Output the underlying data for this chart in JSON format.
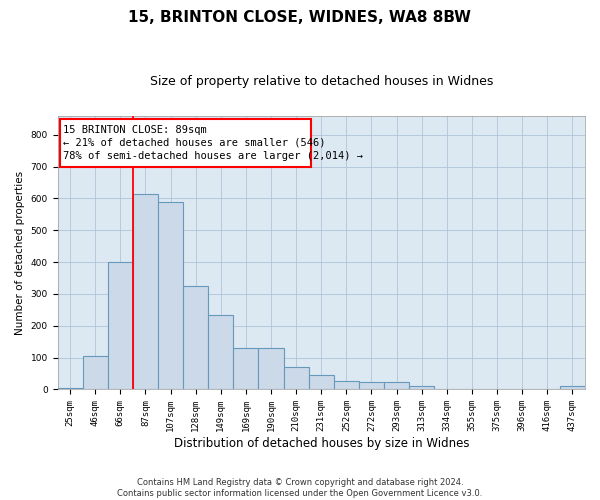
{
  "title1": "15, BRINTON CLOSE, WIDNES, WA8 8BW",
  "title2": "Size of property relative to detached houses in Widnes",
  "xlabel": "Distribution of detached houses by size in Widnes",
  "ylabel": "Number of detached properties",
  "footer1": "Contains HM Land Registry data © Crown copyright and database right 2024.",
  "footer2": "Contains public sector information licensed under the Open Government Licence v3.0.",
  "bar_labels": [
    "25sqm",
    "46sqm",
    "66sqm",
    "87sqm",
    "107sqm",
    "128sqm",
    "149sqm",
    "169sqm",
    "190sqm",
    "210sqm",
    "231sqm",
    "252sqm",
    "272sqm",
    "293sqm",
    "313sqm",
    "334sqm",
    "355sqm",
    "375sqm",
    "396sqm",
    "416sqm",
    "437sqm"
  ],
  "bar_values": [
    5,
    105,
    400,
    615,
    590,
    325,
    235,
    130,
    130,
    72,
    45,
    28,
    22,
    22,
    10,
    0,
    0,
    0,
    0,
    0,
    10
  ],
  "bar_color": "#ccd9e8",
  "bar_edgecolor": "#6699bb",
  "bar_linewidth": 0.8,
  "grid_color": "#b0c4d8",
  "bg_color": "#dce8f2",
  "ann_line1": "15 BRINTON CLOSE: 89sqm",
  "ann_line2": "← 21% of detached houses are smaller (546)",
  "ann_line3": "78% of semi-detached houses are larger (2,014) →",
  "red_line_x": 2.5,
  "ylim": [
    0,
    860
  ],
  "yticks": [
    0,
    100,
    200,
    300,
    400,
    500,
    600,
    700,
    800
  ],
  "title1_fontsize": 11,
  "title2_fontsize": 9,
  "xlabel_fontsize": 8.5,
  "ylabel_fontsize": 7.5,
  "tick_fontsize": 6.5,
  "annotation_fontsize": 7.5,
  "footer_fontsize": 6
}
